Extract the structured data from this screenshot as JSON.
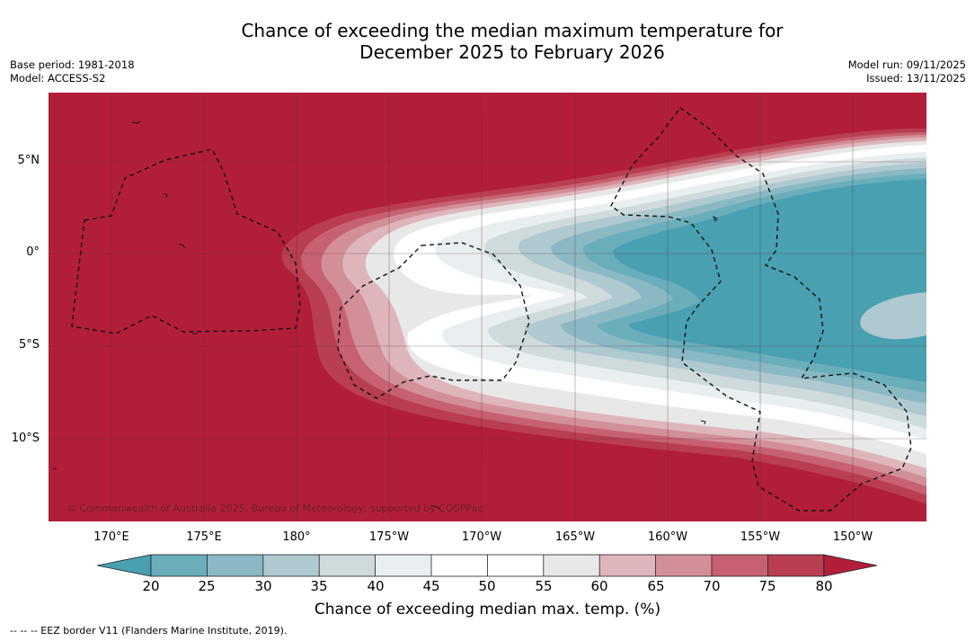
{
  "title": {
    "line1": "Chance of exceeding the median maximum temperature for",
    "line2": "December 2025 to February 2026"
  },
  "meta": {
    "base_period": "Base period: 1981-2018",
    "model": "Model: ACCESS-S2",
    "model_run": "Model run: 09/11/2025",
    "issued": "Issued: 13/11/2025"
  },
  "map": {
    "region": "Equatorial Pacific",
    "copyright": "© Commonwealth of Australia 2025, Bureau of Meteorology, supported by COSPPac",
    "lat_ticks": [
      "5°N",
      "0°",
      "5°S",
      "10°S"
    ],
    "lon_ticks": [
      "170°E",
      "175°E",
      "180°",
      "175°W",
      "170°W",
      "165°W",
      "160°W",
      "155°W",
      "150°W"
    ],
    "colors": {
      "c20": "#48a0b1",
      "c25": "#6aaebb",
      "c30": "#8ab9c4",
      "c35": "#aec9cf",
      "c40": "#cfdadc",
      "c45": "#e9eef0",
      "c50": "#ffffff",
      "c55": "#ffffff",
      "c60": "#e8e8e8",
      "c65": "#dfb5bc",
      "c70": "#d28f98",
      "c75": "#c76172",
      "c80": "#b93e52",
      "over": "#b21e3a"
    }
  },
  "colorbar": {
    "ticks": [
      "20",
      "25",
      "30",
      "35",
      "40",
      "45",
      "50",
      "55",
      "60",
      "65",
      "70",
      "75",
      "80"
    ],
    "label": "Chance of exceeding median max. temp. (%)"
  },
  "footnote": "--  --  -- EEZ border V11 (Flanders Marine Institute, 2019)."
}
